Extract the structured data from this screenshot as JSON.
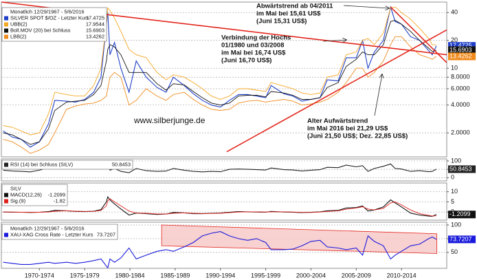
{
  "chart_data": [
    {
      "type": "line",
      "log_y": true,
      "grid": true,
      "legend_title": "Monatlich 12/29/1967 - 5/6/2016",
      "xlim": [
        1968.3,
        2017.5
      ],
      "ylim": [
        1.1,
        52
      ],
      "yticks": [
        {
          "value": 2,
          "label": "2.0000"
        },
        {
          "value": 4,
          "label": "4.0000"
        },
        {
          "value": 6,
          "label": "6.0000"
        },
        {
          "value": 8,
          "label": "8.0000"
        },
        10,
        20,
        40
      ],
      "x": [
        1968.5,
        1969.5,
        1970.5,
        1971.5,
        1972.5,
        1973.5,
        1974.2,
        1975.5,
        1976.5,
        1977.5,
        1978.5,
        1979.3,
        1979.9,
        1980.05,
        1980.3,
        1980.8,
        1981.5,
        1982.4,
        1983.2,
        1984.3,
        1985.5,
        1986.5,
        1987.3,
        1988.5,
        1989.5,
        1990.5,
        1991.5,
        1992.5,
        1993.5,
        1994.5,
        1995.5,
        1996.5,
        1997.5,
        1998.1,
        1999.5,
        2000.5,
        2001.5,
        2002.5,
        2003.5,
        2004.3,
        2005.5,
        2006.4,
        2007.5,
        2008.2,
        2008.8,
        2009.5,
        2010.5,
        2011.3,
        2011.8,
        2012.5,
        2013.5,
        2014.5,
        2015.5,
        2015.9,
        2016.35
      ],
      "series": [
        {
          "name": "SILVER SPOT $/OZ - Letzter Kurs",
          "color": "#1f3fc8",
          "tag": true,
          "values": [
            2.1,
            1.8,
            1.7,
            1.4,
            1.6,
            2.5,
            4.5,
            4.4,
            4.3,
            4.6,
            5.5,
            8,
            30,
            40,
            14,
            19,
            10,
            5.5,
            12,
            8,
            6.2,
            5.5,
            8,
            6.5,
            5.3,
            4.5,
            4.0,
            3.8,
            4.5,
            5.2,
            5.2,
            5.0,
            4.8,
            6.5,
            5.3,
            5.0,
            4.4,
            4.6,
            4.8,
            7.5,
            7.3,
            13,
            13,
            20,
            10,
            15,
            20,
            46,
            32,
            30,
            22,
            20,
            15.5,
            14,
            17.4725
          ]
        },
        {
          "name": "UBB(2)",
          "color": "#f5a623",
          "values": [
            2.4,
            2.3,
            2.1,
            1.9,
            2.0,
            3.2,
            5.5,
            5.2,
            5.0,
            5.0,
            6.5,
            10,
            30,
            45,
            42,
            35,
            25,
            16,
            14,
            13,
            9,
            7.5,
            8.5,
            8,
            7,
            6,
            5,
            4.6,
            5,
            6,
            6,
            5.8,
            5.6,
            7,
            6.4,
            6,
            5.4,
            5.2,
            5.4,
            8,
            8.5,
            14,
            15,
            20,
            21,
            18,
            24,
            45,
            46,
            40,
            34,
            27,
            21,
            18,
            17.9544
          ]
        },
        {
          "name": "Boll.MOV (20) bei Schluss",
          "color": "#111111",
          "tag": true,
          "values": [
            2.0,
            1.9,
            1.7,
            1.5,
            1.6,
            2.2,
            3.5,
            4.3,
            4.4,
            4.5,
            5.2,
            6.5,
            12,
            16,
            18,
            17,
            14,
            9,
            9,
            9,
            6.8,
            5.8,
            6.8,
            6.6,
            5.6,
            4.8,
            4.2,
            4.0,
            4.2,
            5.0,
            5.1,
            5.1,
            4.9,
            5.6,
            5.4,
            5.1,
            4.6,
            4.6,
            4.8,
            6.2,
            7.0,
            10.5,
            12.5,
            15,
            14,
            14,
            18,
            32,
            33,
            30,
            25,
            20,
            16.5,
            15.2,
            15.6903
          ]
        },
        {
          "name": "LBB(2)",
          "color": "#f08a1c",
          "tag": true,
          "values": [
            1.7,
            1.6,
            1.4,
            1.2,
            1.3,
            1.5,
            2.0,
            3.6,
            3.9,
            4.1,
            4.2,
            4.5,
            5,
            6,
            8,
            9,
            8,
            4,
            4.5,
            6,
            5,
            4.5,
            5.2,
            5.5,
            4.6,
            4.0,
            3.6,
            3.5,
            3.6,
            4.2,
            4.4,
            4.5,
            4.3,
            4.4,
            4.6,
            4.4,
            4.0,
            4.1,
            4.3,
            4.6,
            5.5,
            7,
            10,
            10,
            8,
            9,
            12,
            18,
            22,
            22,
            17,
            14,
            13,
            12.5,
            13.4262
          ]
        }
      ],
      "trend_color": "#e3261c",
      "trend_lines": [
        {
          "x": [
            1968.3,
            2017.5
          ],
          "values": [
            52,
            14
          ]
        },
        {
          "x": [
            1993.2,
            2017.5
          ],
          "values": [
            1.25,
            26
          ]
        },
        {
          "x": [
            2011.3,
            2017.5
          ],
          "values": [
            46,
            11.5
          ]
        }
      ],
      "annotations": [
        {
          "lines": [
            "Abwärtstrend ab 04/2011",
            "im Mai bei 15,61 US$",
            "(Juni 15,31 US$)"
          ]
        },
        {
          "lines": [
            "Verbindung der Hochs",
            "01/1980 und 03/2008",
            "im Mai bei 16,74 US$",
            "(Juni 16,70 US$)"
          ]
        },
        {
          "lines": [
            "Alter Aufwärtstrend",
            "im Mai 2016 bei 21,29 US$",
            "(Juni 21,50 US$; Dez. 22,85 US$)"
          ]
        }
      ],
      "watermark": "www.silberjunge.de"
    },
    {
      "type": "line",
      "grid": true,
      "xlim": [
        1968.3,
        2017.5
      ],
      "ylim": [
        -19,
        112
      ],
      "yticks": [
        100,
        50,
        0
      ],
      "x": [
        1968.5,
        1969.5,
        1970.5,
        1971.5,
        1972.5,
        1973.5,
        1974.2,
        1975.5,
        1976.5,
        1977.5,
        1978.5,
        1979.3,
        1979.9,
        1980.05,
        1980.3,
        1980.8,
        1981.5,
        1982.4,
        1983.2,
        1984.3,
        1985.5,
        1986.5,
        1987.3,
        1988.5,
        1989.5,
        1990.5,
        1991.5,
        1992.5,
        1993.5,
        1994.5,
        1995.5,
        1996.5,
        1997.5,
        1998.1,
        1999.5,
        2000.5,
        2001.5,
        2002.5,
        2003.5,
        2004.3,
        2005.5,
        2006.4,
        2007.5,
        2008.2,
        2008.8,
        2009.5,
        2010.5,
        2011.3,
        2011.8,
        2012.5,
        2013.5,
        2014.5,
        2015.5,
        2015.9,
        2016.35
      ],
      "series": [
        {
          "name": "RSI (14) bei Schluss (SILV)",
          "color": "#222222",
          "tag": true,
          "values": [
            45,
            40,
            38,
            35,
            45,
            60,
            75,
            60,
            55,
            58,
            62,
            75,
            92,
            90,
            45,
            55,
            38,
            30,
            55,
            42,
            38,
            40,
            55,
            45,
            38,
            35,
            38,
            36,
            50,
            52,
            50,
            48,
            46,
            58,
            48,
            46,
            40,
            45,
            48,
            62,
            60,
            75,
            65,
            72,
            38,
            55,
            68,
            82,
            55,
            52,
            38,
            42,
            36,
            38,
            50.8453
          ]
        }
      ]
    },
    {
      "type": "line",
      "grid": true,
      "legend_title": "SILV",
      "xlim": [
        1968.3,
        2017.5
      ],
      "ylim": [
        -4,
        14.3
      ],
      "yticks": [
        10,
        5,
        0
      ],
      "x": [
        1968.5,
        1969.5,
        1970.5,
        1971.5,
        1972.5,
        1973.5,
        1974.2,
        1975.5,
        1976.5,
        1977.5,
        1978.5,
        1979.3,
        1979.9,
        1980.05,
        1980.3,
        1980.8,
        1981.5,
        1982.4,
        1983.2,
        1984.3,
        1985.5,
        1986.5,
        1987.3,
        1988.5,
        1989.5,
        1990.5,
        1991.5,
        1992.5,
        1993.5,
        1994.5,
        1995.5,
        1996.5,
        1997.5,
        1998.1,
        1999.5,
        2000.5,
        2001.5,
        2002.5,
        2003.5,
        2004.3,
        2005.5,
        2006.4,
        2007.5,
        2008.2,
        2008.8,
        2009.5,
        2010.5,
        2011.3,
        2011.8,
        2012.5,
        2013.5,
        2014.5,
        2015.5,
        2015.9,
        2016.35
      ],
      "series": [
        {
          "name": "MACD(12,26)",
          "color": "#111111",
          "tag": true,
          "values": [
            0,
            -0.1,
            -0.1,
            -0.2,
            -0.1,
            0.2,
            0.8,
            0.6,
            0.3,
            0.2,
            0.4,
            1.2,
            5,
            7.5,
            6,
            4,
            1.5,
            -1.5,
            -0.5,
            -0.8,
            -1.2,
            -1,
            -0.2,
            -0.4,
            -0.8,
            -0.8,
            -0.6,
            -0.5,
            -0.1,
            0.2,
            0.1,
            0,
            -0.1,
            0.3,
            0,
            -0.1,
            -0.3,
            -0.1,
            0.1,
            0.6,
            0.8,
            2,
            2.2,
            3,
            0.5,
            1,
            2.5,
            6,
            4.5,
            2.5,
            -0.5,
            -1.5,
            -2,
            -2.1,
            -1.2099
          ]
        },
        {
          "name": "Sig.(9)",
          "color": "#e0201b",
          "values": [
            0,
            0,
            -0.1,
            -0.1,
            -0.1,
            0,
            0.4,
            0.6,
            0.4,
            0.3,
            0.3,
            0.8,
            3,
            5.5,
            6.5,
            5,
            3,
            0.5,
            -0.5,
            -0.6,
            -1,
            -1,
            -0.6,
            -0.4,
            -0.6,
            -0.7,
            -0.7,
            -0.6,
            -0.3,
            0,
            0.1,
            0.1,
            0,
            0.1,
            0.1,
            0,
            -0.2,
            -0.2,
            0,
            0.3,
            0.6,
            1.4,
            2,
            2.6,
            1.5,
            1,
            1.8,
            4.5,
            5,
            3.5,
            1,
            -0.8,
            -1.6,
            -2,
            -1.82
          ]
        }
      ]
    },
    {
      "type": "line",
      "grid": true,
      "legend_title": "Monatlich 12/29/1967 - 5/6/2016",
      "xlim": [
        1968.3,
        2017.5
      ],
      "ylim": [
        21,
        105
      ],
      "yticks": [
        100,
        75,
        50
      ],
      "xticks": [
        {
          "value": 1972.5,
          "label": "1970-1974"
        },
        {
          "value": 1977.5,
          "label": "1975-1979"
        },
        {
          "value": 1982.5,
          "label": "1980-1984"
        },
        {
          "value": 1987.5,
          "label": "1985-1989"
        },
        {
          "value": 1992.5,
          "label": "1990-1994"
        },
        {
          "value": 1997.5,
          "label": "1995-1999"
        },
        {
          "value": 2002.5,
          "label": "2000-2004"
        },
        {
          "value": 2007.5,
          "label": "2005-2009"
        },
        {
          "value": 2012.5,
          "label": "2010-2014"
        }
      ],
      "x": [
        1968.5,
        1969.5,
        1970.5,
        1971.5,
        1972.5,
        1973.5,
        1974.2,
        1975.5,
        1976.5,
        1977.5,
        1978.5,
        1979.3,
        1979.9,
        1980.05,
        1980.3,
        1980.8,
        1981.5,
        1982.4,
        1983.2,
        1984.3,
        1985.5,
        1986.5,
        1987.3,
        1988.5,
        1989.5,
        1990.5,
        1991.5,
        1992.5,
        1993.5,
        1994.5,
        1995.5,
        1996.5,
        1997.5,
        1998.1,
        1999.5,
        2000.5,
        2001.5,
        2002.5,
        2003.5,
        2004.3,
        2005.5,
        2006.4,
        2007.5,
        2008.2,
        2008.8,
        2009.5,
        2010.5,
        2011.3,
        2011.8,
        2012.5,
        2013.5,
        2014.5,
        2015.5,
        2015.9,
        2016.35
      ],
      "channel": {
        "x": [
          1986,
          2016.4
        ],
        "upper": [
          100,
          84
        ],
        "lower": [
          62,
          48
        ],
        "color": "#f6c6c6",
        "edge": "#e3261c"
      },
      "series": [
        {
          "name": "XAU-XAG Cross Rate - Letzter Kurs",
          "color": "#1a1adc",
          "tag": true,
          "values": [
            32,
            30,
            28,
            28,
            30,
            32,
            30,
            32,
            30,
            32,
            35,
            38,
            25,
            22,
            38,
            32,
            40,
            58,
            38,
            45,
            52,
            55,
            52,
            60,
            68,
            80,
            85,
            88,
            80,
            75,
            72,
            75,
            68,
            55,
            55,
            56,
            62,
            70,
            72,
            60,
            58,
            55,
            58,
            45,
            80,
            70,
            62,
            38,
            45,
            52,
            62,
            65,
            75,
            78,
            73.7207
          ]
        }
      ]
    }
  ]
}
